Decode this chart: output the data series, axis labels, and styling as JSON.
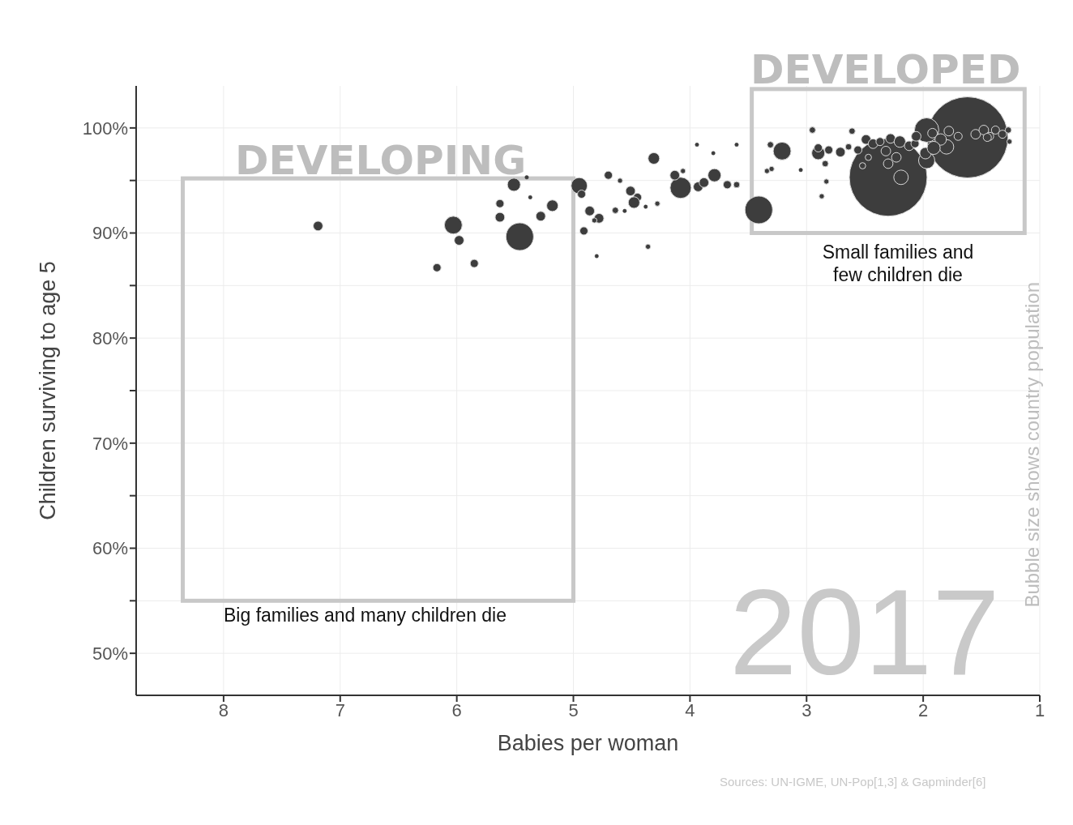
{
  "chart_data": {
    "type": "bubble",
    "xlabel": "Babies per woman",
    "ylabel": "Children surviving to age 5",
    "annotations": [
      "DEVELOPING",
      "DEVELOPED",
      "Big families and many children die",
      "Small families and few children die",
      "2017",
      "Bubble size shows country population",
      "Sources: UN-IGME, UN-Pop[1,3] & Gapminder[6]"
    ],
    "xlim": [
      8.75,
      1
    ],
    "xticks": [
      8,
      7,
      6,
      5,
      4,
      3,
      2,
      1
    ],
    "ylim": [
      46,
      104
    ],
    "yticks": [
      {
        "value": 50,
        "label": "50%"
      },
      {
        "value": 55,
        "label": null
      },
      {
        "value": 60,
        "label": "60%"
      },
      {
        "value": 65,
        "label": null
      },
      {
        "value": 70,
        "label": "70%"
      },
      {
        "value": 75,
        "label": null
      },
      {
        "value": 80,
        "label": "80%"
      },
      {
        "value": 85,
        "label": null
      },
      {
        "value": 90,
        "label": "90%"
      },
      {
        "value": 95,
        "label": null
      },
      {
        "value": 100,
        "label": "100%"
      }
    ],
    "grid": true,
    "marker": "circle",
    "series": [
      {
        "color": "#3d3d3d",
        "x": [
          1.62,
          2.3,
          3.41,
          5.46,
          1.97,
          4.08,
          6.03,
          3.21,
          4.95,
          2.19,
          1.97,
          2.9,
          4.31,
          3.79,
          1.8,
          1.98,
          7.19,
          5.98,
          6.17,
          5.85,
          5.51,
          5.4,
          5.63,
          5.63,
          5.37,
          5.28,
          5.18,
          4.93,
          4.7,
          4.6,
          4.51,
          4.45,
          4.48,
          4.64,
          4.56,
          4.86,
          4.78,
          4.91,
          4.82,
          4.8,
          4.36,
          4.38,
          4.28,
          4.13,
          4.06,
          3.93,
          3.88,
          3.68,
          3.6,
          3.94,
          3.8,
          3.6,
          3.31,
          3.34,
          3.3,
          2.95,
          2.87,
          2.84,
          3.05,
          2.83,
          2.9,
          2.81,
          2.71,
          2.64,
          2.61,
          2.49,
          2.43,
          2.37,
          2.28,
          2.2,
          2.12,
          2.23,
          2.32,
          2.3,
          2.47,
          2.52,
          2.56,
          2.07,
          2.06,
          1.92,
          1.85,
          1.78,
          1.7,
          1.55,
          1.48,
          1.43,
          1.38,
          1.32,
          1.27,
          1.26,
          1.91,
          1.45
        ],
        "values": [
          99.1,
          95.3,
          92.2,
          89.65,
          99.8,
          94.3,
          90.75,
          97.8,
          94.5,
          95.3,
          96.9,
          97.6,
          97.1,
          95.5,
          98.2,
          97.6,
          90.67,
          89.3,
          86.7,
          87.1,
          94.6,
          95.3,
          92.8,
          91.5,
          93.4,
          91.6,
          92.6,
          93.7,
          95.5,
          94.98,
          94.0,
          93.4,
          92.9,
          92.16,
          92.1,
          92.1,
          91.4,
          90.2,
          91.2,
          87.8,
          88.7,
          92.5,
          92.8,
          95.5,
          95.9,
          94.4,
          94.8,
          94.6,
          94.6,
          98.4,
          97.6,
          98.4,
          98.4,
          95.9,
          96.1,
          99.8,
          93.5,
          96.6,
          96.0,
          94.9,
          98.1,
          97.9,
          97.7,
          98.2,
          99.7,
          98.9,
          98.5,
          98.7,
          99.0,
          98.7,
          98.3,
          97.2,
          97.8,
          96.6,
          97.2,
          96.4,
          97.9,
          98.5,
          99.2,
          99.5,
          98.9,
          99.7,
          99.2,
          99.4,
          99.8,
          99.2,
          99.8,
          99.4,
          99.8,
          98.7,
          98.1,
          99.1
        ],
        "sizes": [
          1,
          0.92,
          0.116,
          0.116,
          0.09,
          0.068,
          0.048,
          0.048,
          0.04,
          0.032,
          0.04,
          0.026,
          0.02,
          0.026,
          0.032,
          0.02,
          0.014,
          0.014,
          0.01,
          0.01,
          0.026,
          0.002,
          0.01,
          0.014,
          0.002,
          0.014,
          0.02,
          0.01,
          0.01,
          0.004,
          0.014,
          0.01,
          0.02,
          0.006,
          0.002,
          0.014,
          0.014,
          0.01,
          0.004,
          0.002,
          0.004,
          0.002,
          0.004,
          0.014,
          0.004,
          0.014,
          0.014,
          0.01,
          0.006,
          0.002,
          0.002,
          0.002,
          0.006,
          0.004,
          0.004,
          0.006,
          0.004,
          0.006,
          0.002,
          0.004,
          0.01,
          0.01,
          0.014,
          0.006,
          0.006,
          0.014,
          0.014,
          0.01,
          0.014,
          0.02,
          0.014,
          0.014,
          0.014,
          0.014,
          0.006,
          0.006,
          0.01,
          0.01,
          0.014,
          0.014,
          0.02,
          0.014,
          0.01,
          0.014,
          0.014,
          0.01,
          0.01,
          0.01,
          0.006,
          0.004,
          0.026,
          0.01
        ]
      }
    ]
  }
}
